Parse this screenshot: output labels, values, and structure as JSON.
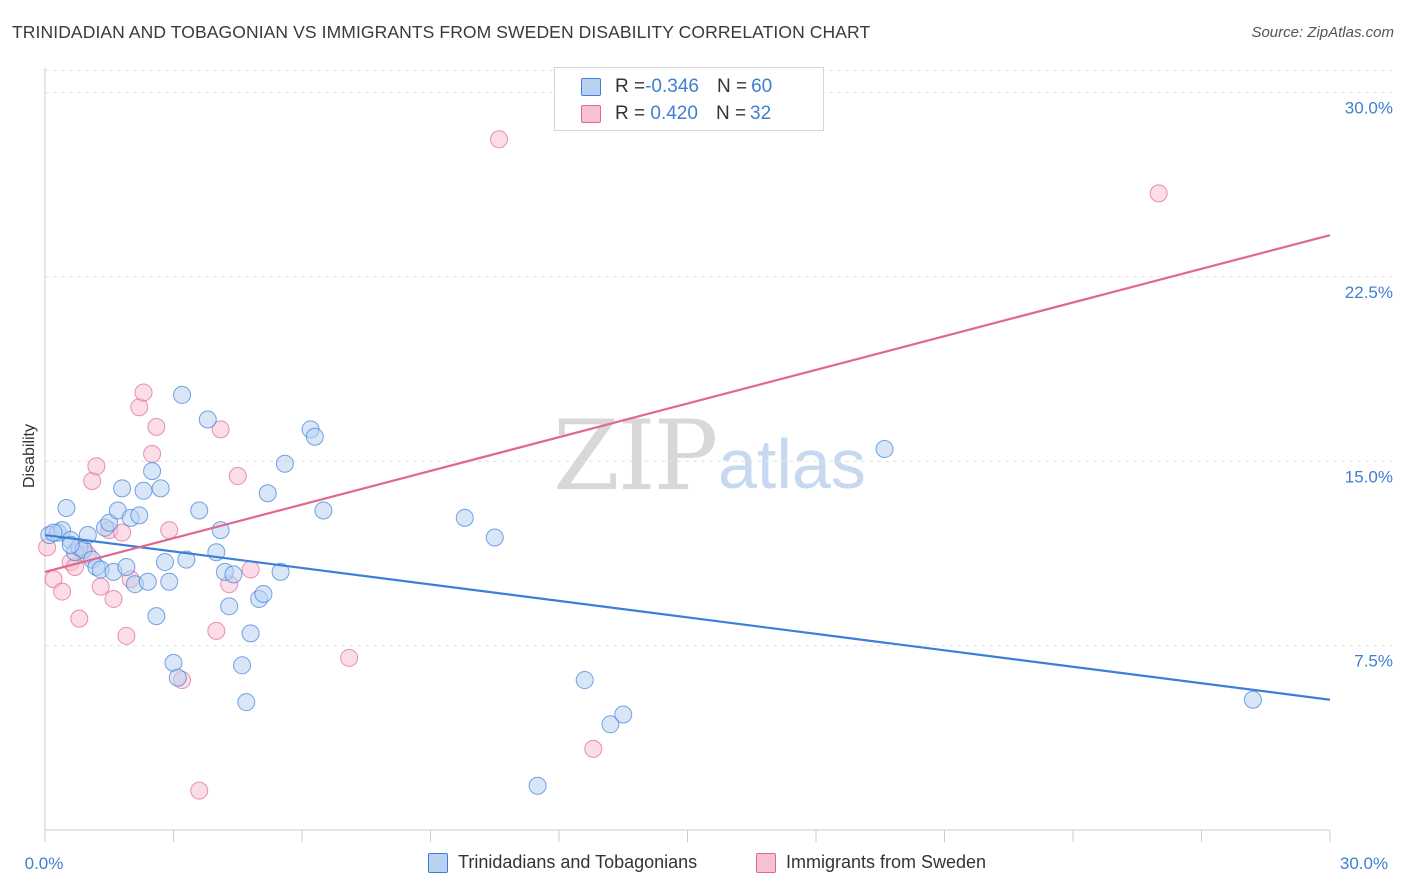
{
  "title": "TRINIDADIAN AND TOBAGONIAN VS IMMIGRANTS FROM SWEDEN DISABILITY CORRELATION CHART",
  "source": "Source: ZipAtlas.com",
  "watermark": {
    "zip": "ZIP",
    "atlas": "atlas"
  },
  "legend_top": {
    "rows": [
      {
        "r_label": "R = ",
        "r_value": "-0.346",
        "n_label": "N = ",
        "n_value": "60"
      },
      {
        "r_label": "R = ",
        "r_value": " 0.420",
        "n_label": "N = ",
        "n_value": "32"
      }
    ]
  },
  "colors": {
    "blue": "#3d7fd8",
    "blue_fill": "#b8d2f3",
    "pink": "#e0678f",
    "pink_fill": "#f6c1d2"
  },
  "chart_data": {
    "type": "scatter",
    "xlabel": "",
    "ylabel": "Disability",
    "xlim": [
      0,
      30
    ],
    "ylim": [
      0,
      31
    ],
    "x_tick_labels": [
      "0.0%",
      "30.0%"
    ],
    "y_ticks": [
      7.5,
      15.0,
      22.5,
      30.0
    ],
    "y_tick_labels": [
      "7.5%",
      "15.0%",
      "22.5%",
      "30.0%"
    ],
    "series": [
      {
        "name": "Trinidadians and Tobagonians",
        "color": "#3d7fd8",
        "trend": {
          "x": [
            0,
            30
          ],
          "y": [
            12.0,
            5.3
          ]
        },
        "points": [
          [
            0.1,
            12.0
          ],
          [
            0.3,
            12.1
          ],
          [
            0.4,
            12.2
          ],
          [
            0.5,
            13.1
          ],
          [
            0.6,
            11.8
          ],
          [
            0.7,
            11.3
          ],
          [
            0.8,
            11.5
          ],
          [
            0.9,
            11.4
          ],
          [
            1.0,
            12.0
          ],
          [
            1.1,
            11.0
          ],
          [
            1.2,
            10.7
          ],
          [
            1.3,
            10.6
          ],
          [
            1.4,
            12.3
          ],
          [
            1.5,
            12.5
          ],
          [
            1.6,
            10.5
          ],
          [
            1.7,
            13.0
          ],
          [
            1.8,
            13.9
          ],
          [
            1.9,
            10.7
          ],
          [
            2.0,
            12.7
          ],
          [
            2.1,
            10.0
          ],
          [
            2.2,
            12.8
          ],
          [
            2.3,
            13.8
          ],
          [
            2.4,
            10.1
          ],
          [
            2.5,
            14.6
          ],
          [
            2.6,
            8.7
          ],
          [
            2.7,
            13.9
          ],
          [
            2.8,
            10.9
          ],
          [
            2.9,
            10.1
          ],
          [
            3.0,
            6.8
          ],
          [
            3.1,
            6.2
          ],
          [
            3.2,
            17.7
          ],
          [
            3.3,
            11.0
          ],
          [
            3.6,
            13.0
          ],
          [
            3.8,
            16.7
          ],
          [
            4.0,
            11.3
          ],
          [
            4.1,
            12.2
          ],
          [
            4.2,
            10.5
          ],
          [
            4.3,
            9.1
          ],
          [
            4.4,
            10.4
          ],
          [
            4.6,
            6.7
          ],
          [
            4.7,
            5.2
          ],
          [
            4.8,
            8.0
          ],
          [
            5.0,
            9.4
          ],
          [
            5.1,
            9.6
          ],
          [
            5.2,
            13.7
          ],
          [
            5.5,
            10.5
          ],
          [
            5.6,
            14.9
          ],
          [
            6.2,
            16.3
          ],
          [
            6.3,
            16.0
          ],
          [
            6.5,
            13.0
          ],
          [
            9.8,
            12.7
          ],
          [
            10.5,
            11.9
          ],
          [
            11.5,
            1.8
          ],
          [
            12.6,
            6.1
          ],
          [
            13.2,
            4.3
          ],
          [
            13.5,
            4.7
          ],
          [
            19.6,
            15.5
          ],
          [
            28.2,
            5.3
          ],
          [
            0.2,
            12.1
          ],
          [
            0.6,
            11.6
          ]
        ]
      },
      {
        "name": "Immigrants from Sweden",
        "color": "#e0678f",
        "trend": {
          "x": [
            0,
            30
          ],
          "y": [
            10.5,
            24.2
          ]
        },
        "points": [
          [
            0.05,
            11.5
          ],
          [
            0.2,
            10.2
          ],
          [
            0.4,
            9.7
          ],
          [
            0.6,
            10.9
          ],
          [
            0.7,
            10.7
          ],
          [
            0.8,
            8.6
          ],
          [
            0.9,
            11.4
          ],
          [
            1.0,
            11.2
          ],
          [
            1.1,
            14.2
          ],
          [
            1.2,
            14.8
          ],
          [
            1.3,
            9.9
          ],
          [
            1.5,
            12.2
          ],
          [
            1.6,
            9.4
          ],
          [
            1.8,
            12.1
          ],
          [
            1.9,
            7.9
          ],
          [
            2.0,
            10.2
          ],
          [
            2.2,
            17.2
          ],
          [
            2.3,
            17.8
          ],
          [
            2.5,
            15.3
          ],
          [
            2.6,
            16.4
          ],
          [
            2.9,
            12.2
          ],
          [
            3.2,
            6.1
          ],
          [
            3.6,
            1.6
          ],
          [
            4.0,
            8.1
          ],
          [
            4.1,
            16.3
          ],
          [
            4.3,
            10.0
          ],
          [
            4.5,
            14.4
          ],
          [
            4.8,
            10.6
          ],
          [
            7.1,
            7.0
          ],
          [
            10.6,
            28.1
          ],
          [
            12.8,
            3.3
          ],
          [
            26.0,
            25.9
          ]
        ]
      }
    ]
  },
  "bottom_legend": [
    {
      "label": "Trinidadians and Tobagonians"
    },
    {
      "label": "Immigrants from Sweden"
    }
  ]
}
